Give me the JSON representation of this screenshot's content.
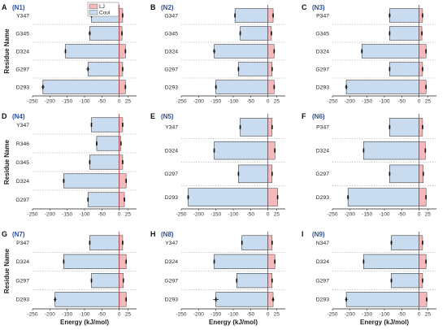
{
  "legend": {
    "items": [
      {
        "label": "LJ",
        "color": "#f4b9bc"
      },
      {
        "label": "Coul",
        "color": "#c9dcef"
      }
    ]
  },
  "colors": {
    "coul_fill": "#c9dcef",
    "lj_fill": "#f4b9bc",
    "bar_stroke": "#3a3a3a",
    "zero_line": "#b03030",
    "separator": "#9a9a9a"
  },
  "y_axis_title": "Residue Name",
  "x_axis_title": "Energy (kJ/mol)",
  "chart_data": [
    {
      "type": "bar",
      "letter": "A",
      "name": "(N1)",
      "categories": [
        "Y347",
        "G345",
        "D324",
        "G297",
        "D293"
      ],
      "series": [
        {
          "name": "LJ",
          "values": [
            10,
            8,
            18,
            10,
            18
          ],
          "errors": [
            2,
            2,
            2,
            2,
            2
          ]
        },
        {
          "name": "Coul",
          "values": [
            -80,
            -85,
            -155,
            -90,
            -220
          ],
          "errors": [
            2,
            4,
            2,
            5,
            5
          ]
        }
      ],
      "xlim": [
        -250,
        50
      ],
      "xticks": [
        -250,
        -200,
        -150,
        -100,
        -50,
        0,
        25
      ]
    },
    {
      "type": "bar",
      "letter": "B",
      "name": "(N2)",
      "categories": [
        "G347",
        "G345",
        "D324",
        "G297",
        "D293"
      ],
      "series": [
        {
          "name": "LJ",
          "values": [
            15,
            10,
            18,
            12,
            18
          ],
          "errors": [
            2,
            2,
            2,
            2,
            2
          ]
        },
        {
          "name": "Coul",
          "values": [
            -95,
            -80,
            -155,
            -85,
            -150
          ],
          "errors": [
            2,
            2,
            4,
            2,
            3
          ]
        }
      ],
      "xlim": [
        -250,
        50
      ],
      "xticks": [
        -250,
        -200,
        -150,
        -100,
        -50,
        0,
        25
      ]
    },
    {
      "type": "bar",
      "letter": "C",
      "name": "(N3)",
      "categories": [
        "P347",
        "G345",
        "D324",
        "G297",
        "D293"
      ],
      "series": [
        {
          "name": "LJ",
          "values": [
            10,
            8,
            20,
            10,
            20
          ],
          "errors": [
            2,
            2,
            2,
            2,
            2
          ]
        },
        {
          "name": "Coul",
          "values": [
            -85,
            -85,
            -165,
            -85,
            -210
          ],
          "errors": [
            3,
            2,
            3,
            2,
            4
          ]
        }
      ],
      "xlim": [
        -250,
        50
      ],
      "xticks": [
        -250,
        -200,
        -150,
        -100,
        -50,
        0,
        25
      ]
    },
    {
      "type": "bar",
      "letter": "D",
      "name": "(N4)",
      "categories": [
        "Y347",
        "R346",
        "G345",
        "D324",
        "G297"
      ],
      "series": [
        {
          "name": "LJ",
          "values": [
            10,
            5,
            10,
            20,
            15
          ],
          "errors": [
            2,
            2,
            2,
            2,
            2
          ]
        },
        {
          "name": "Coul",
          "values": [
            -80,
            -65,
            -85,
            -160,
            -90
          ],
          "errors": [
            2,
            2,
            2,
            3,
            2
          ]
        }
      ],
      "xlim": [
        -250,
        50
      ],
      "xticks": [
        -250,
        -200,
        -150,
        -100,
        -50,
        0,
        25
      ]
    },
    {
      "type": "bar",
      "letter": "E",
      "name": "(N5)",
      "categories": [
        "Y347",
        "D324",
        "G297",
        "D293"
      ],
      "series": [
        {
          "name": "LJ",
          "values": [
            12,
            20,
            12,
            28
          ],
          "errors": [
            2,
            2,
            2,
            2
          ]
        },
        {
          "name": "Coul",
          "values": [
            -80,
            -155,
            -85,
            -230
          ],
          "errors": [
            2,
            2,
            2,
            3
          ]
        }
      ],
      "xlim": [
        -250,
        50
      ],
      "xticks": [
        -250,
        -200,
        -150,
        -100,
        -50,
        0,
        25
      ]
    },
    {
      "type": "bar",
      "letter": "F",
      "name": "(N6)",
      "categories": [
        "P347",
        "D324",
        "G297",
        "D293"
      ],
      "series": [
        {
          "name": "LJ",
          "values": [
            10,
            18,
            12,
            20
          ],
          "errors": [
            2,
            2,
            2,
            2
          ]
        },
        {
          "name": "Coul",
          "values": [
            -85,
            -160,
            -85,
            -205
          ],
          "errors": [
            2,
            2,
            2,
            3
          ]
        }
      ],
      "xlim": [
        -250,
        50
      ],
      "xticks": [
        -250,
        -200,
        -150,
        -100,
        -50,
        0,
        25
      ]
    },
    {
      "type": "bar",
      "letter": "G",
      "name": "(N7)",
      "categories": [
        "P347",
        "D324",
        "G297",
        "D293"
      ],
      "series": [
        {
          "name": "LJ",
          "values": [
            10,
            20,
            12,
            20
          ],
          "errors": [
            2,
            2,
            2,
            2
          ]
        },
        {
          "name": "Coul",
          "values": [
            -85,
            -160,
            -80,
            -185
          ],
          "errors": [
            2,
            2,
            2,
            4
          ]
        }
      ],
      "xlim": [
        -250,
        50
      ],
      "xticks": [
        -250,
        -200,
        -150,
        -100,
        -50,
        0,
        25
      ]
    },
    {
      "type": "bar",
      "letter": "H",
      "name": "(N8)",
      "categories": [
        "Y347",
        "D324",
        "G297",
        "D293"
      ],
      "series": [
        {
          "name": "LJ",
          "values": [
            12,
            20,
            12,
            15
          ],
          "errors": [
            2,
            2,
            2,
            4
          ]
        },
        {
          "name": "Coul",
          "values": [
            -75,
            -155,
            -90,
            -150
          ],
          "errors": [
            2,
            2,
            2,
            8
          ]
        }
      ],
      "xlim": [
        -250,
        50
      ],
      "xticks": [
        -250,
        -200,
        -150,
        -100,
        -50,
        0,
        25
      ]
    },
    {
      "type": "bar",
      "letter": "I",
      "name": "(N9)",
      "categories": [
        "N347",
        "D324",
        "G297",
        "D293"
      ],
      "series": [
        {
          "name": "LJ",
          "values": [
            10,
            20,
            10,
            22
          ],
          "errors": [
            2,
            2,
            2,
            2
          ]
        },
        {
          "name": "Coul",
          "values": [
            -80,
            -160,
            -80,
            -210
          ],
          "errors": [
            3,
            2,
            3,
            4
          ]
        }
      ],
      "xlim": [
        -250,
        50
      ],
      "xticks": [
        -250,
        -200,
        -150,
        -100,
        -50,
        0,
        25
      ]
    }
  ]
}
